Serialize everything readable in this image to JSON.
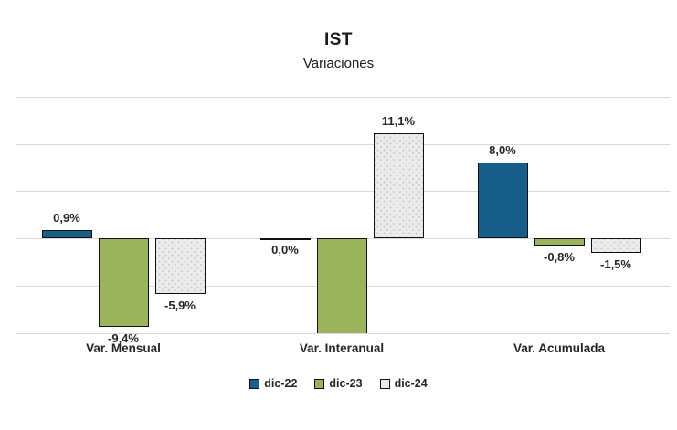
{
  "title": "IST",
  "subtitle": "Variaciones",
  "chart_data": {
    "type": "bar",
    "title": "IST",
    "subtitle": "Variaciones",
    "categories": [
      "Var. Mensual",
      "Var. Interanual",
      "Var. Acumulada"
    ],
    "series": [
      {
        "name": "dic-22",
        "color": "#175e8a",
        "pattern": "solid",
        "values": [
          0.9,
          0.0,
          8.0
        ],
        "labels": [
          "0,9%",
          "0,0%",
          "8,0%"
        ],
        "clipped": [
          false,
          false,
          false
        ]
      },
      {
        "name": "dic-23",
        "color": "#99b45b",
        "pattern": "solid",
        "values": [
          -9.4,
          -10.0,
          -0.8
        ],
        "labels": [
          "-9,4%",
          "",
          "-0,8%"
        ],
        "clipped": [
          false,
          true,
          false
        ],
        "note": "second bar is clipped at axis minimum (-10%), no data label visible"
      },
      {
        "name": "dic-24",
        "color": "#ebebeb",
        "pattern": "dotted",
        "values": [
          -5.9,
          11.1,
          -1.5
        ],
        "labels": [
          "-5,9%",
          "11,1%",
          "-1,5%"
        ],
        "clipped": [
          false,
          false,
          false
        ]
      }
    ],
    "xlabel": "",
    "ylabel": "",
    "ylim": [
      -10,
      15
    ],
    "grid_step": 5,
    "grid": true,
    "y_axis_labels_visible": false,
    "legend_position": "bottom",
    "data_labels": "outside-end"
  },
  "colors": {
    "background": "#ffffff",
    "gridline": "#d9d9d9",
    "bar_border": "#111111",
    "text": "#262626",
    "dot_pattern": "#c9c9c9"
  }
}
